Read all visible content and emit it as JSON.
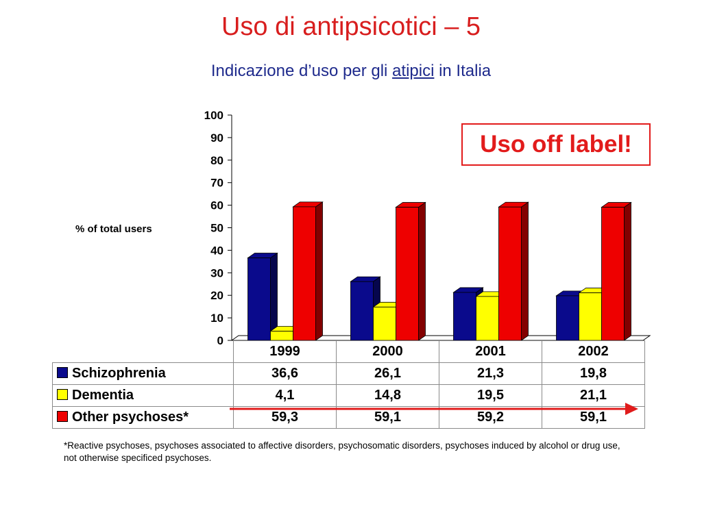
{
  "title": "Uso di antipsicotici – 5",
  "subtitle": {
    "before": "Indicazione d’uso per gli ",
    "underlined": "atipici",
    "after": " in Italia"
  },
  "callout": "Uso off label!",
  "colors": {
    "title": "#d81e1e",
    "subtitle": "#1e2a8c",
    "schizophrenia": "#0a0a8c",
    "dementia": "#ffff00",
    "other": "#ee0000",
    "arrow": "#e01b1b"
  },
  "chart_data": {
    "type": "bar",
    "title": "",
    "ylabel": "% of total users",
    "xlabel": "",
    "ylim": [
      0,
      100
    ],
    "yticks": [
      "0",
      "10",
      "20",
      "30",
      "40",
      "50",
      "60",
      "70",
      "80",
      "90",
      "100"
    ],
    "categories": [
      "1999",
      "2000",
      "2001",
      "2002"
    ],
    "series": [
      {
        "name": "Schizophrenia",
        "values": [
          36.6,
          26.1,
          21.3,
          19.8
        ],
        "labels": [
          "36,6",
          "26,1",
          "21,3",
          "19,8"
        ]
      },
      {
        "name": "Dementia",
        "values": [
          4.1,
          14.8,
          19.5,
          21.1
        ],
        "labels": [
          "4,1",
          "14,8",
          "19,5",
          "21,1"
        ]
      },
      {
        "name": "Other psychoses*",
        "values": [
          59.3,
          59.1,
          59.2,
          59.1
        ],
        "labels": [
          "59,3",
          "59,1",
          "59,2",
          "59,1"
        ]
      }
    ]
  },
  "footnote": "*Reactive psychoses, psychoses associated to affective disorders, psychosomatic disorders, psychoses induced by alcohol or drug use, not otherwise specificed psychoses."
}
